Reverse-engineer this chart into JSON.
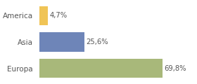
{
  "categories": [
    "Europa",
    "Asia",
    "America"
  ],
  "values": [
    69.8,
    25.6,
    4.7
  ],
  "labels": [
    "69,8%",
    "25,6%",
    "4,7%"
  ],
  "bar_colors": [
    "#a8b87a",
    "#6e85b8",
    "#f0c456"
  ],
  "background_color": "#ffffff",
  "xlim": [
    0,
    88
  ],
  "figsize": [
    2.8,
    1.2
  ],
  "dpi": 100,
  "bar_height": 0.72,
  "label_fontsize": 7.2,
  "tick_fontsize": 7.5,
  "tick_color": "#555555",
  "label_color": "#555555",
  "grid_color": "#e0e0e0"
}
